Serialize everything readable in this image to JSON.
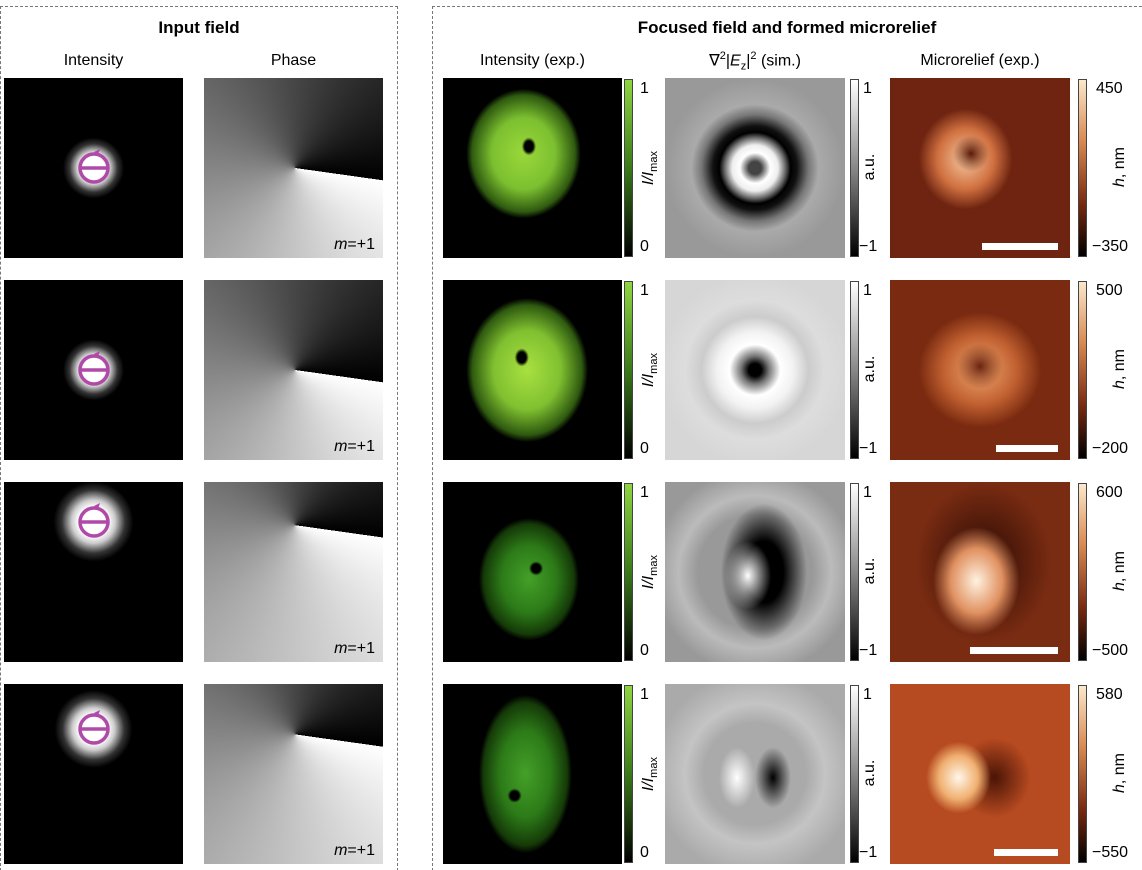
{
  "left_panel": {
    "title": "Input field",
    "columns": [
      "Intensity",
      "Phase"
    ]
  },
  "right_panel": {
    "title": "Focused field and formed microrelief",
    "columns": {
      "intensity": "Intensity (exp.)",
      "simulation": {
        "nabla": "∇",
        "square": "2",
        "bar": "|",
        "field": "E",
        "component": "z",
        "bar_close": "|",
        "square_close": "2",
        "note": " (sim.)"
      },
      "microrelief": "Microrelief (exp.)"
    }
  },
  "colorbars": {
    "intensity": {
      "main": "I/I",
      "sub": "max"
    },
    "simulation": "a.u.",
    "microrelief": {
      "symbol": "h",
      "unit": ", nm"
    }
  },
  "rows": [
    {
      "charge": {
        "symbol": "m",
        "value": "=+1"
      },
      "intensity_ticks": [
        "1",
        "0"
      ],
      "simulation_ticks": [
        "1",
        "−1"
      ],
      "microrelief_ticks": [
        "450",
        "−350"
      ]
    },
    {
      "charge": {
        "symbol": "m",
        "value": "=+1"
      },
      "intensity_ticks": [
        "1",
        "0"
      ],
      "simulation_ticks": [
        "1",
        "−1"
      ],
      "microrelief_ticks": [
        "500",
        "−200"
      ]
    },
    {
      "charge": {
        "symbol": "m",
        "value": "=+1"
      },
      "intensity_ticks": [
        "1",
        "0"
      ],
      "simulation_ticks": [
        "1",
        "−1"
      ],
      "microrelief_ticks": [
        "600",
        "−500"
      ]
    },
    {
      "charge": {
        "symbol": "m",
        "value": "=+1"
      },
      "intensity_ticks": [
        "1",
        "0"
      ],
      "simulation_ticks": [
        "1",
        "−1"
      ],
      "microrelief_ticks": [
        "580",
        "−550"
      ]
    }
  ]
}
